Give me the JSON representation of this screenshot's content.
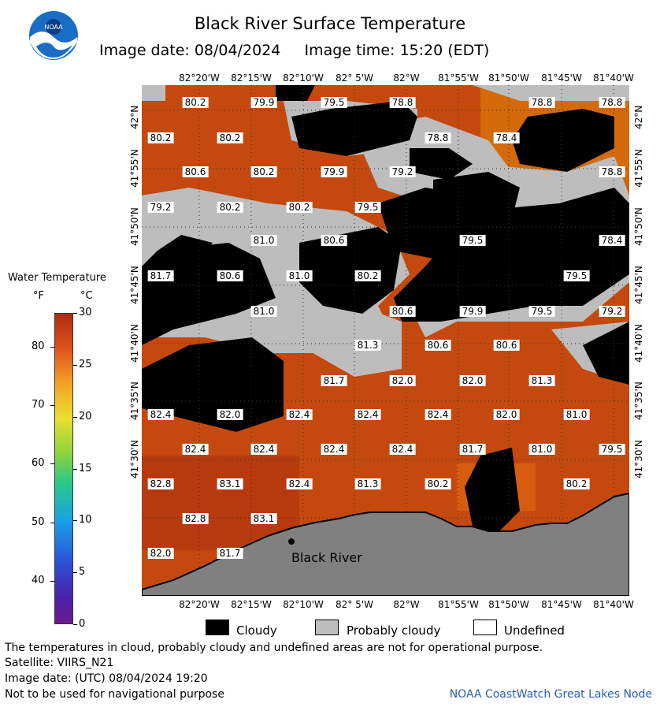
{
  "header": {
    "title": "Black River Surface Temperature",
    "date_line": "Image date: 08/04/2024     Image time: 15:20 (EDT)"
  },
  "logo": {
    "text": "NOAA",
    "icon": "noaa-logo-icon"
  },
  "map": {
    "lon_ticks": [
      "82°20'W",
      "82°15'W",
      "82°10'W",
      "82° 5'W",
      "82°W",
      "81°55'W",
      "81°50'W",
      "81°45'W",
      "81°40'W"
    ],
    "lat_ticks": [
      "42°N",
      "41°55'N",
      "41°50'N",
      "41°45'N",
      "41°40'N",
      "41°35'N",
      "41°30'N"
    ],
    "place_label": "Black River",
    "temperature_labels": [
      "80.2",
      "79.9",
      "79.5",
      "78.8",
      "78.8",
      "78.8",
      "80.2",
      "80.2",
      "78.8",
      "78.4",
      "80.6",
      "80.2",
      "79.9",
      "79.2",
      "78.8",
      "79.2",
      "80.2",
      "80.2",
      "79.5",
      "81.0",
      "80.6",
      "79.5",
      "78.4",
      "81.7",
      "80.6",
      "81.0",
      "80.2",
      "79.5",
      "81.0",
      "80.6",
      "79.9",
      "79.5",
      "79.2",
      "81.3",
      "80.6",
      "80.6",
      "81.7",
      "82.0",
      "82.0",
      "81.3",
      "82.4",
      "82.0",
      "82.4",
      "82.4",
      "82.4",
      "82.0",
      "81.0",
      "82.4",
      "82.4",
      "82.4",
      "82.4",
      "81.7",
      "81.0",
      "79.5",
      "82.8",
      "83.1",
      "82.4",
      "81.3",
      "80.2",
      "80.2",
      "82.8",
      "83.1",
      "82.0",
      "81.7"
    ]
  },
  "legend": {
    "title": "Water Temperature",
    "unit_f": "°F",
    "unit_c": "°C",
    "f_ticks": [
      "80",
      "70",
      "60",
      "50",
      "40"
    ],
    "c_ticks": [
      "30",
      "25",
      "20",
      "15",
      "10",
      "5",
      "0"
    ],
    "colors": {
      "cold": "#6b1a8c",
      "mid": "#28c88a",
      "warm": "#e8e030",
      "hot": "#b02a10"
    }
  },
  "key": {
    "cloudy": "Cloudy",
    "probably_cloudy": "Probably cloudy",
    "undefined": "Undefined",
    "colors": {
      "cloudy": "#000000",
      "probably_cloudy": "#bdbdbd",
      "undefined": "#ffffff"
    }
  },
  "footer": {
    "disclaimer": "The temperatures in cloud, probably cloudy and undefined areas are not for operational purpose.",
    "satellite": "Satellite: VIIRS_N21",
    "utc_date": "Image date: (UTC) 08/04/2024  19:20",
    "nav_warning": "Not to be used for navigational purpose",
    "credit": "NOAA CoastWatch Great Lakes Node"
  }
}
